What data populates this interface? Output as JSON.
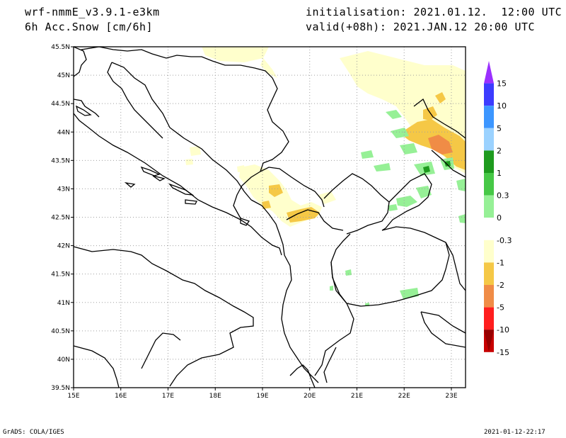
{
  "header": {
    "model": "wrf-nmmE_v3.9.1-e3km",
    "field": "6h Acc.Snow [cm/6h]",
    "init": "initialisation: 2021.01.12.  12:00 UTC",
    "valid": "valid(+08h): 2021.JAN.12 20:00 UTC"
  },
  "map": {
    "lat_labels": [
      "45.5N",
      "45N",
      "44.5N",
      "44N",
      "43.5N",
      "43N",
      "42.5N",
      "42N",
      "41.5N",
      "41N",
      "40.5N",
      "40N",
      "39.5N"
    ],
    "lon_labels": [
      "15E",
      "16E",
      "17E",
      "18E",
      "19E",
      "20E",
      "21E",
      "22E",
      "23E"
    ],
    "lat_range": [
      39.5,
      45.5
    ],
    "lon_range": [
      15,
      23.3
    ],
    "grid": "dotted"
  },
  "colorbar": {
    "labels": [
      "15",
      "10",
      "5",
      "2",
      "1",
      "0.3",
      "0",
      "-0.3",
      "-1",
      "-2",
      "-5",
      "-10",
      "-15"
    ],
    "colors": [
      "#9b30ff",
      "#3c3cff",
      "#3c96ff",
      "#9bd2ff",
      "#1e9b1e",
      "#46c846",
      "#96f096",
      "#ffffff",
      "#ffffcc",
      "#f5c846",
      "#f08c46",
      "#ff1e1e",
      "#c80000",
      "#960000"
    ]
  },
  "footer": {
    "left": "GrADS: COLA/IGES",
    "right": "2021-01-12-22:17"
  },
  "colors": {
    "light_yellow": "#ffffcc",
    "orange_yellow": "#f5c846",
    "orange": "#f08c46",
    "light_green": "#96f096",
    "mid_green": "#46c846",
    "dark_green": "#1e9b1e"
  }
}
